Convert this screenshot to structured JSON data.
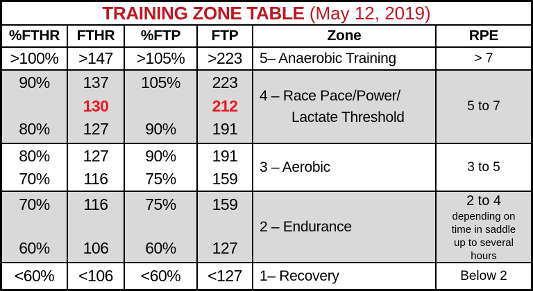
{
  "title": {
    "main": "TRAINING ZONE TABLE",
    "date": " (May 12, 2019)"
  },
  "columns": [
    "%FTHR",
    "FTHR",
    "%FTP",
    "FTP",
    "Zone",
    "RPE"
  ],
  "zones": [
    {
      "fthr_pct": ">100%",
      "fthr": ">147",
      "ftp_pct": ">105%",
      "ftp": ">223",
      "label": "5– Anaerobic Training",
      "rpe": "> 7"
    },
    {
      "fthr_pct_top": "90%",
      "fthr_pct_bottom": "80%",
      "fthr_top": "137",
      "fthr_mid": "130",
      "fthr_bottom": "127",
      "ftp_pct_top": "105%",
      "ftp_pct_bottom": "90%",
      "ftp_top": "223",
      "ftp_mid": "212",
      "ftp_bottom": "191",
      "label_line1": "4 – Race Pace/Power/",
      "label_line2": "Lactate Threshold",
      "rpe": "5 to 7"
    },
    {
      "fthr_pct_top": "80%",
      "fthr_pct_bottom": "70%",
      "fthr_top": "127",
      "fthr_bottom": "116",
      "ftp_pct_top": "90%",
      "ftp_pct_bottom": "75%",
      "ftp_top": "191",
      "ftp_bottom": "159",
      "label": "3 – Aerobic",
      "rpe": "3 to 5"
    },
    {
      "fthr_pct_top": "70%",
      "fthr_pct_bottom": "60%",
      "fthr_top": "116",
      "fthr_bottom": "106",
      "ftp_pct_top": "75%",
      "ftp_pct_bottom": "60%",
      "ftp_top": "159",
      "ftp_bottom": "127",
      "label": "2 – Endurance",
      "rpe_main": "2 to 4",
      "rpe_note_lines": [
        "depending on",
        "time in saddle",
        "up to several",
        "hours"
      ]
    },
    {
      "fthr_pct": "<60%",
      "fthr": "<106",
      "ftp_pct": "<60%",
      "ftp": "<127",
      "label": "1– Recovery",
      "rpe": "Below 2"
    }
  ],
  "colors": {
    "title_red": "#C01622",
    "value_red": "#EA1A22",
    "row_gray": "#D9D9D9",
    "border": "#000000"
  }
}
